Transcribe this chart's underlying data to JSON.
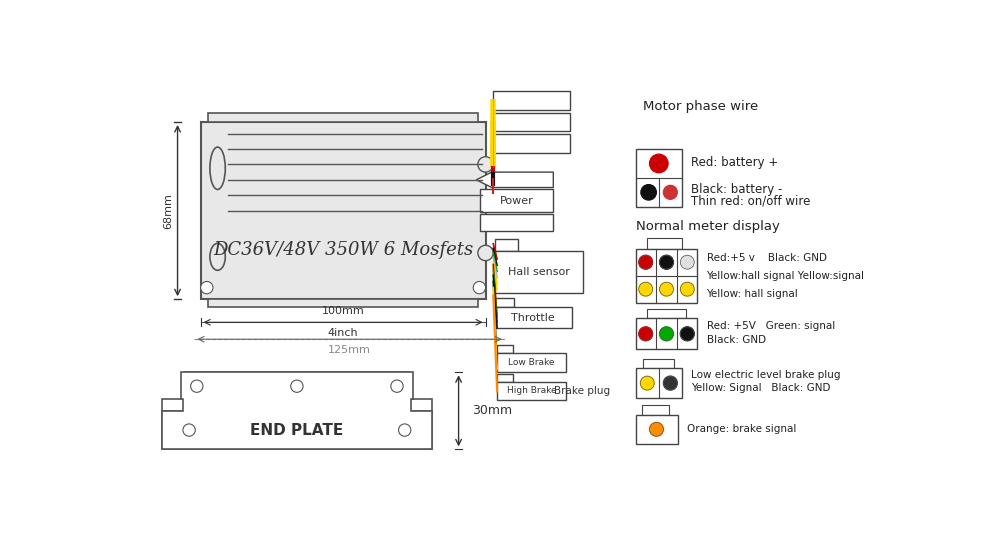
{
  "bg_color": "#ffffff",
  "controller_label": "DC36V/48V 350W 6 Mosfets",
  "height_label": "68mm",
  "width_label1": "100mm",
  "width_label2": "4inch",
  "width_label3": "125mm",
  "end_plate_label": "END PLATE",
  "end_plate_height": "30mm",
  "legend_power_title": "Red: battery +",
  "legend_power2": "Black: battery -",
  "legend_power3": "Thin red: on/off wire",
  "legend_meter": "Normal meter display",
  "legend_hall1": "Red:+5 v    Black: GND",
  "legend_hall2": "Yellow:hall signal Yellow:signal",
  "legend_hall3": "Yellow: hall signal",
  "legend_thr1": "Red: +5V   Green: signal",
  "legend_thr2": "Black: GND",
  "legend_lb1": "Low electric level brake plug",
  "legend_lb2": "Yellow: Signal   Black: GND",
  "legend_hb1": "Orange: brake signal",
  "legend_phase": "Motor phase wire"
}
